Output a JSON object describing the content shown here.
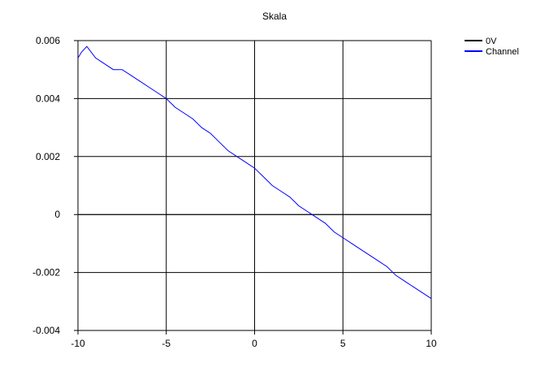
{
  "chart_data": {
    "type": "line",
    "title": "Skala",
    "xlabel": "",
    "ylabel": "",
    "xlim": [
      -10,
      10
    ],
    "ylim": [
      -0.004,
      0.006
    ],
    "xticks": [
      -10,
      -5,
      0,
      5,
      10
    ],
    "yticks": [
      -0.004,
      -0.002,
      0,
      0.002,
      0.004,
      0.006
    ],
    "xtick_labels": [
      "-10",
      "-5",
      "0",
      "5",
      "10"
    ],
    "ytick_labels": [
      "-0.004",
      "-0.002",
      "0",
      "0.002",
      "0.004",
      "0.006"
    ],
    "grid": true,
    "legend_position": "top-right",
    "series": [
      {
        "name": "0V",
        "color": "#000000",
        "x": [
          -10,
          10
        ],
        "y": [
          0,
          0
        ]
      },
      {
        "name": "Channel",
        "color": "#0000ff",
        "x": [
          -10,
          -9.8,
          -9.5,
          -9,
          -8.5,
          -8,
          -7.5,
          -7,
          -6.5,
          -6,
          -5.5,
          -5,
          -4.5,
          -4,
          -3.5,
          -3,
          -2.5,
          -2,
          -1.5,
          -1,
          -0.5,
          0,
          0.5,
          1,
          1.5,
          2,
          2.5,
          3,
          3.5,
          4,
          4.5,
          5,
          5.5,
          6,
          6.5,
          7,
          7.5,
          8,
          8.5,
          9,
          9.5,
          10
        ],
        "y": [
          0.0054,
          0.0056,
          0.0058,
          0.0054,
          0.0052,
          0.005,
          0.005,
          0.0048,
          0.0046,
          0.0044,
          0.0042,
          0.004,
          0.0037,
          0.0035,
          0.0033,
          0.003,
          0.0028,
          0.0025,
          0.0022,
          0.002,
          0.0018,
          0.0016,
          0.0013,
          0.001,
          0.0008,
          0.0006,
          0.0003,
          0.0001,
          -0.0001,
          -0.0003,
          -0.0006,
          -0.0008,
          -0.001,
          -0.0012,
          -0.0014,
          -0.0016,
          -0.0018,
          -0.0021,
          -0.0023,
          -0.0025,
          -0.0027,
          -0.0029
        ]
      }
    ]
  }
}
